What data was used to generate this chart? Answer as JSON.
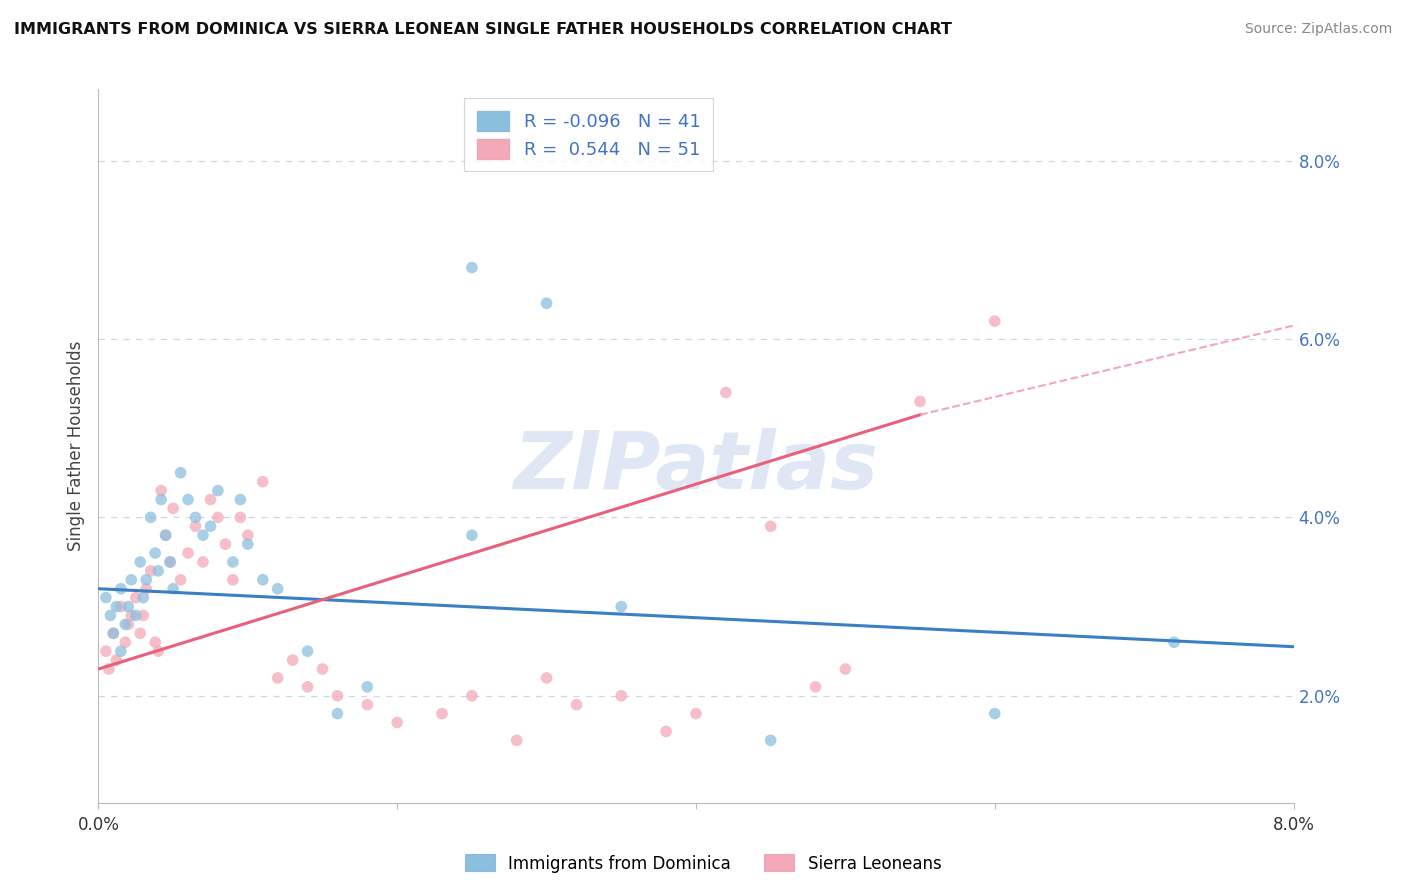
{
  "title": "IMMIGRANTS FROM DOMINICA VS SIERRA LEONEAN SINGLE FATHER HOUSEHOLDS CORRELATION CHART",
  "source": "Source: ZipAtlas.com",
  "ylabel_label": "Single Father Households",
  "y_ticks": [
    2.0,
    4.0,
    6.0,
    8.0
  ],
  "x_range": [
    0.0,
    8.0
  ],
  "y_range": [
    0.8,
    8.8
  ],
  "legend_blue_R": "-0.096",
  "legend_blue_N": "41",
  "legend_pink_R": "0.544",
  "legend_pink_N": "51",
  "legend_label_blue": "Immigrants from Dominica",
  "legend_label_pink": "Sierra Leoneans",
  "watermark": "ZIPatlas",
  "blue_scatter_x": [
    0.05,
    0.08,
    0.1,
    0.12,
    0.15,
    0.15,
    0.18,
    0.2,
    0.22,
    0.25,
    0.28,
    0.3,
    0.32,
    0.35,
    0.38,
    0.4,
    0.42,
    0.45,
    0.48,
    0.5,
    0.55,
    0.6,
    0.65,
    0.7,
    0.75,
    0.8,
    0.9,
    0.95,
    1.0,
    1.1,
    1.2,
    1.4,
    1.6,
    1.8,
    2.5,
    3.0,
    3.5,
    4.5,
    2.5,
    6.0,
    7.2
  ],
  "blue_scatter_y": [
    3.1,
    2.9,
    2.7,
    3.0,
    3.2,
    2.5,
    2.8,
    3.0,
    3.3,
    2.9,
    3.5,
    3.1,
    3.3,
    4.0,
    3.6,
    3.4,
    4.2,
    3.8,
    3.5,
    3.2,
    4.5,
    4.2,
    4.0,
    3.8,
    3.9,
    4.3,
    3.5,
    4.2,
    3.7,
    3.3,
    3.2,
    2.5,
    1.8,
    2.1,
    6.8,
    6.4,
    3.0,
    1.5,
    3.8,
    1.8,
    2.6
  ],
  "pink_scatter_x": [
    0.05,
    0.07,
    0.1,
    0.12,
    0.15,
    0.18,
    0.2,
    0.22,
    0.25,
    0.28,
    0.3,
    0.32,
    0.35,
    0.38,
    0.4,
    0.42,
    0.45,
    0.48,
    0.5,
    0.55,
    0.6,
    0.65,
    0.7,
    0.75,
    0.8,
    0.85,
    0.9,
    0.95,
    1.0,
    1.1,
    1.2,
    1.3,
    1.4,
    1.5,
    1.6,
    1.8,
    2.0,
    2.3,
    2.5,
    2.8,
    3.0,
    3.2,
    3.5,
    3.8,
    4.0,
    4.2,
    4.5,
    4.8,
    5.0,
    5.5,
    6.0
  ],
  "pink_scatter_y": [
    2.5,
    2.3,
    2.7,
    2.4,
    3.0,
    2.6,
    2.8,
    2.9,
    3.1,
    2.7,
    2.9,
    3.2,
    3.4,
    2.6,
    2.5,
    4.3,
    3.8,
    3.5,
    4.1,
    3.3,
    3.6,
    3.9,
    3.5,
    4.2,
    4.0,
    3.7,
    3.3,
    4.0,
    3.8,
    4.4,
    2.2,
    2.4,
    2.1,
    2.3,
    2.0,
    1.9,
    1.7,
    1.8,
    2.0,
    1.5,
    2.2,
    1.9,
    2.0,
    1.6,
    1.8,
    5.4,
    3.9,
    2.1,
    2.3,
    5.3,
    6.2
  ],
  "blue_color": "#8bbfde",
  "pink_color": "#f4a8b8",
  "blue_line_color": "#3a7fc1",
  "pink_line_color": "#e8607a",
  "pink_dash_color": "#f0a8b8",
  "background_color": "#ffffff",
  "grid_color": "#c8d8ec",
  "blue_line_start_y": 3.2,
  "blue_line_end_y": 2.55,
  "pink_line_start_y": 2.3,
  "pink_solid_end_x": 5.5,
  "pink_solid_end_y": 5.15,
  "pink_dash_end_y": 6.15
}
